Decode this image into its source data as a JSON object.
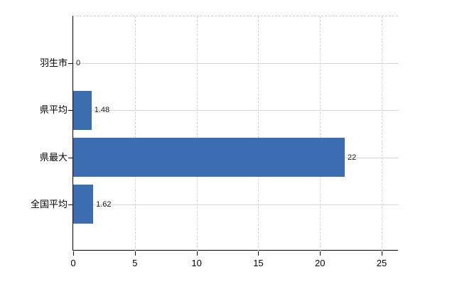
{
  "chart_data": {
    "type": "bar",
    "orientation": "horizontal",
    "title": "",
    "xlabel": "",
    "ylabel": "",
    "categories": [
      "羽生市",
      "県平均",
      "県最大",
      "全国平均"
    ],
    "values": [
      0,
      1.48,
      22,
      1.62
    ],
    "value_labels": [
      "0",
      "1.48",
      "22",
      "1.62"
    ],
    "x_ticks": [
      0,
      5,
      10,
      15,
      20,
      25
    ],
    "x_tick_labels": [
      "0",
      "5",
      "10",
      "15",
      "20",
      "25"
    ],
    "xlim": [
      0,
      26.38
    ],
    "grid": true,
    "legend": false,
    "bar_color": "#3c6db0",
    "axis_color": "#000000",
    "hgrid_color": "#d2d8d0",
    "vgrid_color": "#d6d6d6",
    "background_color": "#ffffff"
  }
}
